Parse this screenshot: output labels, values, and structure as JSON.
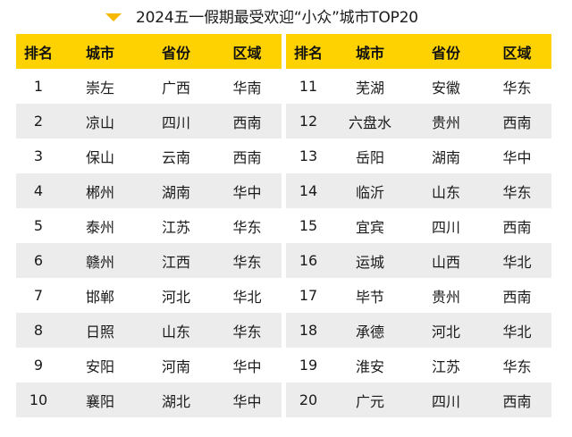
{
  "title": {
    "icon": "triangle-down-icon",
    "text": "2024五一假期最受欢迎“小众”城市TOP20",
    "accent_color": "#f7b900"
  },
  "colors": {
    "header_bg": "#fdd200",
    "alt_row_bg": "#ebeceb",
    "row_bg": "#ffffff"
  },
  "headers": [
    "排名",
    "城市",
    "省份",
    "区域"
  ],
  "left_table": {
    "rows": [
      {
        "rank": "1",
        "city": "崇左",
        "province": "广西",
        "region": "华南"
      },
      {
        "rank": "2",
        "city": "凉山",
        "province": "四川",
        "region": "西南"
      },
      {
        "rank": "3",
        "city": "保山",
        "province": "云南",
        "region": "西南"
      },
      {
        "rank": "4",
        "city": "郴州",
        "province": "湖南",
        "region": "华中"
      },
      {
        "rank": "5",
        "city": "泰州",
        "province": "江苏",
        "region": "华东"
      },
      {
        "rank": "6",
        "city": "赣州",
        "province": "江西",
        "region": "华东"
      },
      {
        "rank": "7",
        "city": "邯郸",
        "province": "河北",
        "region": "华北"
      },
      {
        "rank": "8",
        "city": "日照",
        "province": "山东",
        "region": "华东"
      },
      {
        "rank": "9",
        "city": "安阳",
        "province": "河南",
        "region": "华中"
      },
      {
        "rank": "10",
        "city": "襄阳",
        "province": "湖北",
        "region": "华中"
      }
    ]
  },
  "right_table": {
    "rows": [
      {
        "rank": "11",
        "city": "芜湖",
        "province": "安徽",
        "region": "华东"
      },
      {
        "rank": "12",
        "city": "六盘水",
        "province": "贵州",
        "region": "西南"
      },
      {
        "rank": "13",
        "city": "岳阳",
        "province": "湖南",
        "region": "华中"
      },
      {
        "rank": "14",
        "city": "临沂",
        "province": "山东",
        "region": "华东"
      },
      {
        "rank": "15",
        "city": "宜宾",
        "province": "四川",
        "region": "西南"
      },
      {
        "rank": "16",
        "city": "运城",
        "province": "山西",
        "region": "华北"
      },
      {
        "rank": "17",
        "city": "毕节",
        "province": "贵州",
        "region": "西南"
      },
      {
        "rank": "18",
        "city": "承德",
        "province": "河北",
        "region": "华北"
      },
      {
        "rank": "19",
        "city": "淮安",
        "province": "江苏",
        "region": "华东"
      },
      {
        "rank": "20",
        "city": "广元",
        "province": "四川",
        "region": "西南"
      }
    ]
  }
}
